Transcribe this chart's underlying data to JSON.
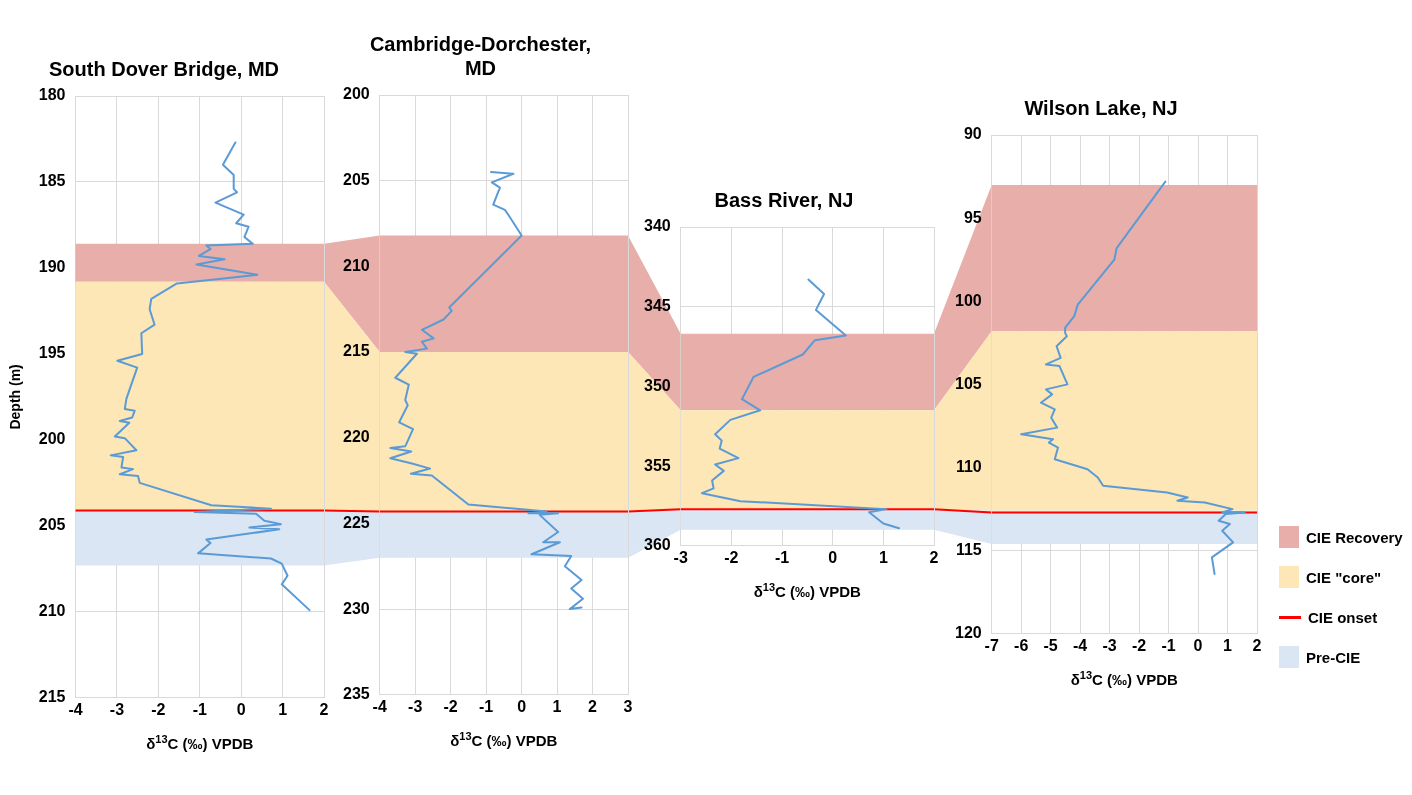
{
  "chart_data": [
    {
      "type": "line",
      "title": "South Dover Bridge, MD",
      "xlabel": "δ$^{13}$C (‰) VPDB",
      "ylabel": "Depth (m)",
      "xlim": [
        -4,
        2
      ],
      "xticks": [
        -4,
        -3,
        -2,
        -1,
        0,
        1,
        2
      ],
      "ylim": [
        215,
        180
      ],
      "yticks": [
        180,
        185,
        190,
        195,
        200,
        205,
        210,
        215
      ],
      "grid": true,
      "legend": false,
      "marker": "none",
      "line_style": "solid",
      "series": [
        {
          "color": "#5b9bd5",
          "x": [
            -0.14,
            -0.44,
            -0.18,
            -0.18,
            -0.1,
            -0.62,
            0.06,
            -0.12,
            0.18,
            0.08,
            0.28,
            -0.84,
            -0.74,
            -1.02,
            -0.4,
            -1.08,
            0.39,
            -1.55,
            -2.17,
            -2.21,
            -2.09,
            -2.41,
            -2.39,
            -2.99,
            -2.51,
            -2.77,
            -2.81,
            -2.57,
            -2.63,
            -2.93,
            -2.7,
            -3.05,
            -2.81,
            -2.53,
            -3.15,
            -2.85,
            -2.89,
            -2.61,
            -2.93,
            -2.49,
            -2.45,
            -0.72,
            0.72,
            -1.12,
            0.36,
            0.56,
            0.96,
            0.2,
            0.92,
            -0.84,
            -0.74,
            -1.04,
            0.72,
            0.98,
            1.12,
            0.98,
            1.65
          ],
          "values": [
            182.7,
            184.0,
            184.6,
            185.4,
            185.6,
            186.2,
            186.9,
            187.4,
            187.6,
            188.2,
            188.6,
            188.7,
            188.9,
            189.3,
            189.5,
            189.8,
            190.4,
            190.9,
            191.8,
            192.4,
            193.3,
            193.8,
            195.0,
            195.4,
            195.8,
            197.6,
            198.2,
            198.3,
            198.7,
            198.9,
            199.0,
            199.8,
            199.9,
            200.6,
            200.9,
            201.0,
            201.6,
            201.7,
            202.0,
            202.1,
            202.5,
            203.8,
            204.0,
            204.2,
            204.3,
            204.7,
            204.9,
            205.1,
            205.2,
            205.8,
            206.0,
            206.6,
            206.9,
            207.2,
            207.9,
            208.4,
            209.9
          ]
        }
      ],
      "bands": [
        {
          "axis": "y",
          "from": 188.6,
          "to": 190.8,
          "color": "#e8aeaa"
        },
        {
          "axis": "y",
          "from": 190.8,
          "to": 204.1,
          "color": "#fde7b6"
        },
        {
          "axis": "y",
          "from": 204.1,
          "to": 207.3,
          "color": "#dae6f3"
        }
      ],
      "ref_lines": [
        {
          "axis": "y",
          "value": 204.1,
          "color": "#ff0000"
        }
      ]
    },
    {
      "type": "line",
      "title": "Cambridge-Dorchester, MD",
      "xlabel": "δ$^{13}$C (‰) VPDB",
      "xlim": [
        -4,
        3
      ],
      "xticks": [
        -4,
        -3,
        -2,
        -1,
        0,
        1,
        2,
        3
      ],
      "ylim": [
        235,
        200
      ],
      "yticks": [
        200,
        205,
        210,
        215,
        220,
        225,
        230,
        235
      ],
      "grid": true,
      "legend": false,
      "marker": "none",
      "line_style": "solid",
      "series": [
        {
          "color": "#5b9bd5",
          "x": [
            -0.86,
            -0.23,
            -0.84,
            -0.61,
            -0.8,
            -0.47,
            -0.37,
            0.0,
            -2.04,
            -1.97,
            -2.2,
            -2.81,
            -2.48,
            -2.81,
            -2.67,
            -3.28,
            -2.95,
            -3.56,
            -3.18,
            -3.28,
            -3.21,
            -3.45,
            -3.06,
            -3.28,
            -3.7,
            -3.11,
            -3.7,
            -3.09,
            -2.58,
            -3.12,
            -2.53,
            -1.5,
            0.7,
            0.19,
            1.03,
            0.51,
            1.03,
            0.61,
            1.08,
            0.28,
            1.4,
            1.22,
            1.69,
            1.4,
            1.73,
            1.36,
            1.69
          ],
          "values": [
            204.5,
            204.6,
            205.1,
            205.4,
            206.4,
            206.7,
            207.0,
            208.2,
            212.4,
            212.6,
            213.1,
            213.7,
            214.2,
            214.4,
            214.8,
            215.0,
            215.1,
            216.5,
            216.9,
            217.8,
            218.1,
            219.1,
            219.5,
            220.5,
            220.6,
            220.8,
            221.2,
            221.5,
            221.8,
            222.1,
            222.2,
            223.9,
            224.3,
            224.4,
            224.4,
            224.5,
            225.5,
            226.1,
            226.1,
            226.8,
            226.9,
            227.5,
            228.3,
            228.8,
            229.4,
            230.0,
            229.9
          ]
        }
      ],
      "bands": [
        {
          "axis": "y",
          "from": 208.2,
          "to": 215.0,
          "color": "#e8aeaa"
        },
        {
          "axis": "y",
          "from": 215.0,
          "to": 224.3,
          "color": "#fde7b6"
        },
        {
          "axis": "y",
          "from": 224.3,
          "to": 227.0,
          "color": "#dae6f3"
        }
      ],
      "ref_lines": [
        {
          "axis": "y",
          "value": 224.3,
          "color": "#ff0000"
        }
      ]
    },
    {
      "type": "line",
      "title": "Bass River, NJ",
      "xlabel": "δ$^{13}$C (‰) VPDB",
      "xlim": [
        -3,
        2
      ],
      "xticks": [
        -3,
        -2,
        -1,
        0,
        1,
        2
      ],
      "ylim": [
        360,
        340
      ],
      "yticks": [
        340,
        345,
        350,
        355,
        360
      ],
      "grid": true,
      "legend": false,
      "marker": "none",
      "line_style": "solid",
      "series": [
        {
          "color": "#5b9bd5",
          "x": [
            -0.48,
            -0.17,
            -0.33,
            0.26,
            -0.35,
            -0.59,
            -1.56,
            -1.79,
            -1.43,
            -2.02,
            -2.32,
            -2.19,
            -2.23,
            -1.86,
            -2.32,
            -2.15,
            -2.38,
            -2.35,
            -2.58,
            -1.82,
            1.06,
            0.72,
            1.0,
            1.31
          ],
          "values": [
            343.3,
            344.2,
            345.2,
            346.8,
            347.1,
            348.0,
            349.4,
            350.8,
            351.5,
            352.1,
            353.0,
            353.4,
            353.9,
            354.5,
            354.9,
            355.3,
            355.9,
            356.4,
            356.7,
            357.2,
            357.7,
            357.9,
            358.6,
            358.9
          ]
        }
      ],
      "bands": [
        {
          "axis": "y",
          "from": 346.7,
          "to": 351.5,
          "color": "#e8aeaa"
        },
        {
          "axis": "y",
          "from": 351.5,
          "to": 357.7,
          "color": "#fde7b6"
        },
        {
          "axis": "y",
          "from": 357.7,
          "to": 359.0,
          "color": "#dae6f3"
        }
      ],
      "ref_lines": [
        {
          "axis": "y",
          "value": 357.7,
          "color": "#ff0000"
        }
      ]
    },
    {
      "type": "line",
      "title": "Wilson Lake, NJ",
      "xlabel": "δ$^{13}$C (‰) VPDB",
      "xlim": [
        -7,
        2
      ],
      "xticks": [
        -7,
        -6,
        -5,
        -4,
        -3,
        -2,
        -1,
        0,
        1,
        2
      ],
      "ylim": [
        120,
        90
      ],
      "yticks": [
        90,
        95,
        100,
        105,
        110,
        115,
        120
      ],
      "grid": true,
      "legend": "right",
      "marker": "none",
      "line_style": "solid",
      "series": [
        {
          "color": "#5b9bd5",
          "x": [
            -1.11,
            -2.76,
            -2.84,
            -4.08,
            -4.2,
            -4.51,
            -4.51,
            -4.45,
            -4.8,
            -4.66,
            -5.16,
            -4.7,
            -4.43,
            -5.16,
            -4.95,
            -5.33,
            -4.86,
            -4.98,
            -4.78,
            -6.0,
            -4.92,
            -5.06,
            -4.75,
            -4.86,
            -3.75,
            -3.4,
            -3.22,
            -1.05,
            -0.35,
            -0.7,
            0.23,
            1.17,
            0.82,
            1.58,
            0.94,
            0.7,
            1.08,
            0.82,
            1.19,
            0.47,
            0.56
          ],
          "values": [
            92.8,
            96.8,
            97.5,
            100.2,
            100.9,
            101.6,
            101.9,
            102.1,
            102.7,
            103.4,
            103.8,
            103.9,
            105.0,
            105.3,
            105.6,
            106.1,
            106.5,
            107.0,
            107.6,
            108.0,
            108.3,
            108.5,
            108.8,
            109.5,
            110.1,
            110.6,
            111.1,
            111.5,
            111.8,
            112.0,
            112.1,
            112.5,
            112.7,
            112.7,
            112.8,
            113.2,
            113.4,
            113.8,
            114.5,
            115.4,
            116.4
          ]
        }
      ],
      "bands": [
        {
          "axis": "y",
          "from": 93.0,
          "to": 101.8,
          "color": "#e8aeaa",
          "label": "CIE Recovery"
        },
        {
          "axis": "y",
          "from": 101.8,
          "to": 112.6,
          "color": "#fde7b6",
          "label": "CIE \"core\""
        },
        {
          "axis": "y",
          "from": 112.6,
          "to": 114.6,
          "color": "#dae6f3",
          "label": "Pre-CIE"
        }
      ],
      "ref_lines": [
        {
          "axis": "y",
          "value": 112.7,
          "color": "#ff0000",
          "label": "CIE onset"
        }
      ]
    }
  ]
}
